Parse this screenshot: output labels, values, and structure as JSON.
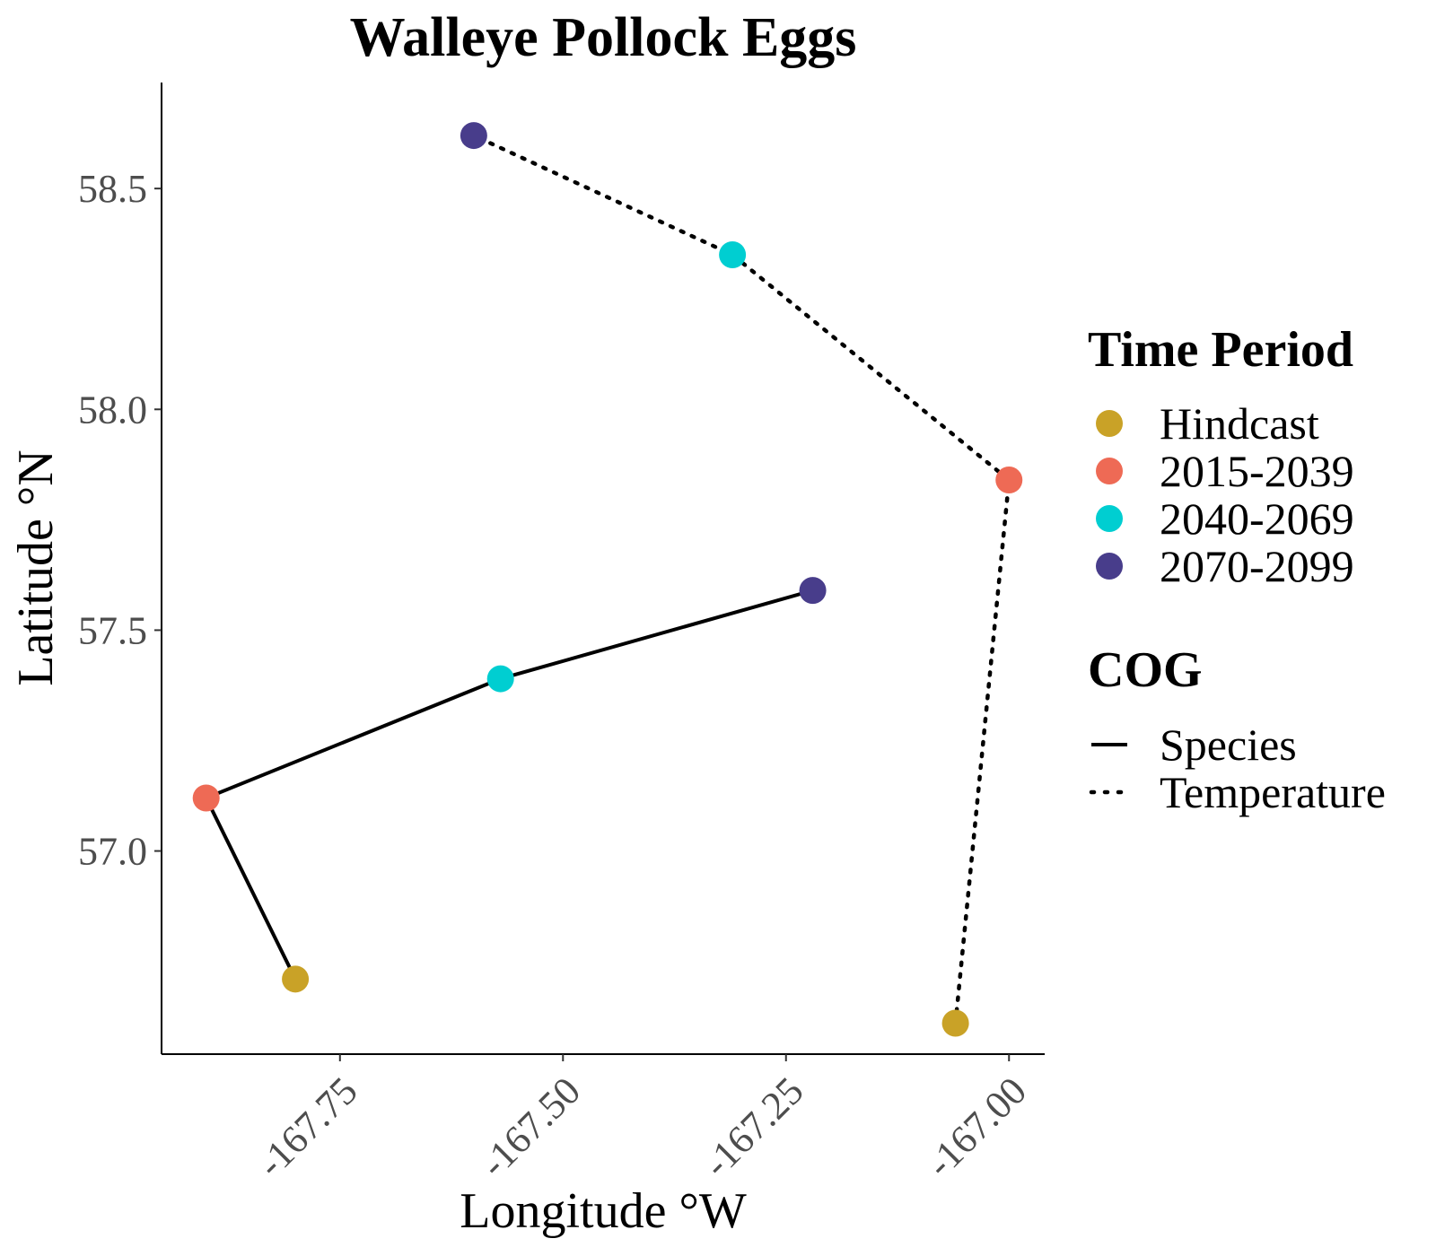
{
  "chart_data": {
    "type": "scatter",
    "title": "Walleye Pollock Eggs",
    "xlabel": "Longitude °W",
    "ylabel": "Latitude °N",
    "xlim": [
      -167.95,
      -166.96
    ],
    "ylim": [
      56.54,
      58.74
    ],
    "xticks": [
      -167.75,
      -167.5,
      -167.25,
      -167.0
    ],
    "xtick_labels": [
      "-167.75",
      "-167.50",
      "-167.25",
      "-167.00"
    ],
    "yticks": [
      57.0,
      57.5,
      58.0,
      58.5
    ],
    "ytick_labels": [
      "57.0",
      "57.5",
      "58.0",
      "58.5"
    ],
    "grid": false,
    "legend_position": "right",
    "period_legend": {
      "title": "Time Period",
      "items": [
        {
          "label": "Hindcast",
          "color": "#C9A227"
        },
        {
          "label": "2015-2039",
          "color": "#EE6A55"
        },
        {
          "label": "2040-2069",
          "color": "#00CED1"
        },
        {
          "label": "2070-2099",
          "color": "#483D8B"
        }
      ]
    },
    "cog_legend": {
      "title": "COG",
      "items": [
        {
          "label": "Species",
          "linestyle": "solid"
        },
        {
          "label": "Temperature",
          "linestyle": "dotted"
        }
      ]
    },
    "series": [
      {
        "name": "Species",
        "linestyle": "solid",
        "points": [
          {
            "period": "Hindcast",
            "x": -167.8,
            "y": 56.71
          },
          {
            "period": "2015-2039",
            "x": -167.9,
            "y": 57.12
          },
          {
            "period": "2040-2069",
            "x": -167.57,
            "y": 57.39
          },
          {
            "period": "2070-2099",
            "x": -167.22,
            "y": 57.59
          }
        ]
      },
      {
        "name": "Temperature",
        "linestyle": "dotted",
        "points": [
          {
            "period": "Hindcast",
            "x": -167.06,
            "y": 56.61
          },
          {
            "period": "2015-2039",
            "x": -167.0,
            "y": 57.84
          },
          {
            "period": "2040-2069",
            "x": -167.31,
            "y": 58.35
          },
          {
            "period": "2070-2099",
            "x": -167.6,
            "y": 58.62
          }
        ]
      }
    ]
  }
}
